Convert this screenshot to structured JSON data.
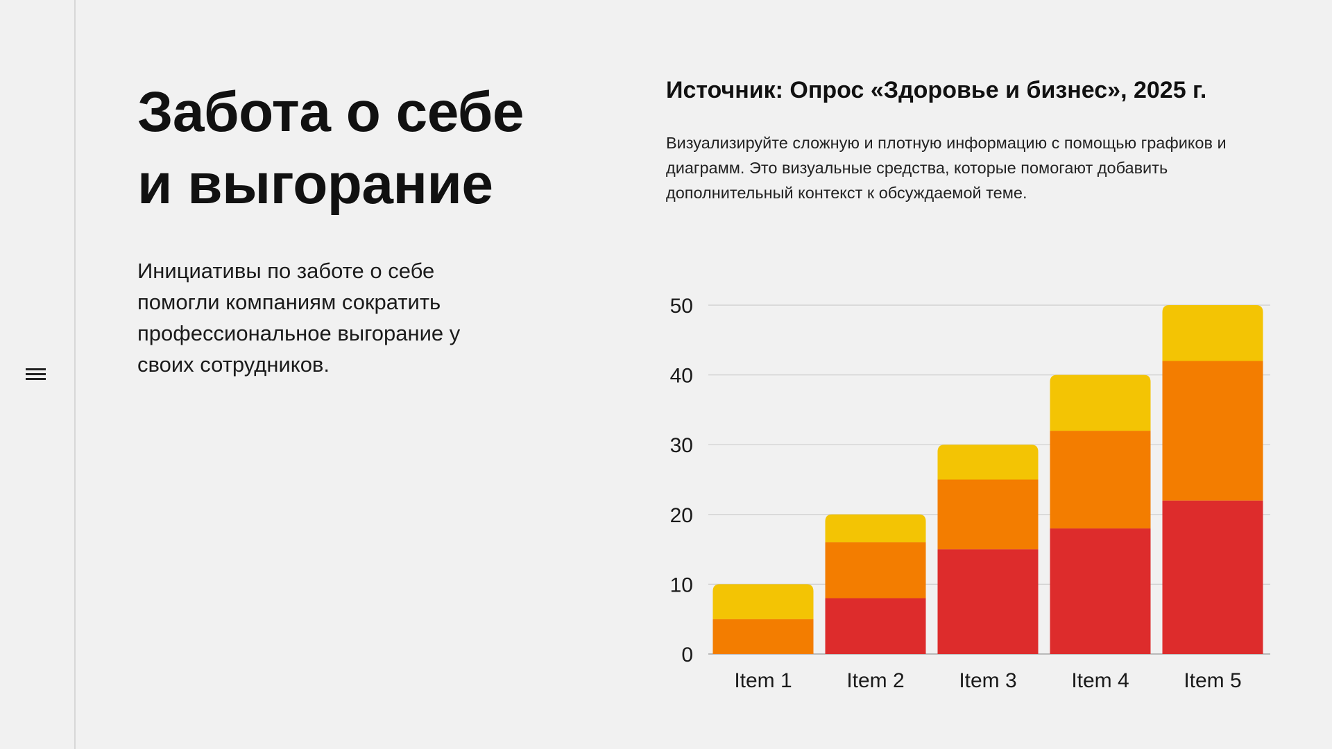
{
  "sidebar": {
    "menu_icon": "hamburger-menu-icon"
  },
  "left": {
    "title_line1": "Забота о себе",
    "title_line2": "и выгорание",
    "lead": "Инициативы по заботе о себе помогли компаниям сократить профессиональное выгорание у своих сотрудников."
  },
  "right": {
    "source": "Источник: Опрос «Здоровье и бизнес», 2025 г.",
    "description": "Визуализируйте сложную и плотную информацию с помощью графиков и диаграмм. Это визуальные средства, которые помогают добавить дополнительный контекст к обсуждаемой теме."
  },
  "colors": {
    "background": "#f1f1f1",
    "red": "#dd2c2c",
    "orange": "#f37d00",
    "yellow": "#f3c404",
    "grid": "#cccccc"
  },
  "chart_data": {
    "type": "bar",
    "stacked": true,
    "categories": [
      "Item 1",
      "Item 2",
      "Item 3",
      "Item 4",
      "Item 5"
    ],
    "series": [
      {
        "values": [
          0,
          8,
          15,
          18,
          22
        ],
        "color": "#dd2c2c"
      },
      {
        "values": [
          5,
          8,
          10,
          14,
          20
        ],
        "color": "#f37d00"
      },
      {
        "values": [
          5,
          4,
          5,
          8,
          8
        ],
        "color": "#f3c404"
      }
    ],
    "yticks": [
      0,
      10,
      20,
      30,
      40,
      50
    ],
    "ylim": [
      0,
      50
    ],
    "grid": true,
    "legend": "none",
    "title": "",
    "xlabel": "",
    "ylabel": ""
  }
}
